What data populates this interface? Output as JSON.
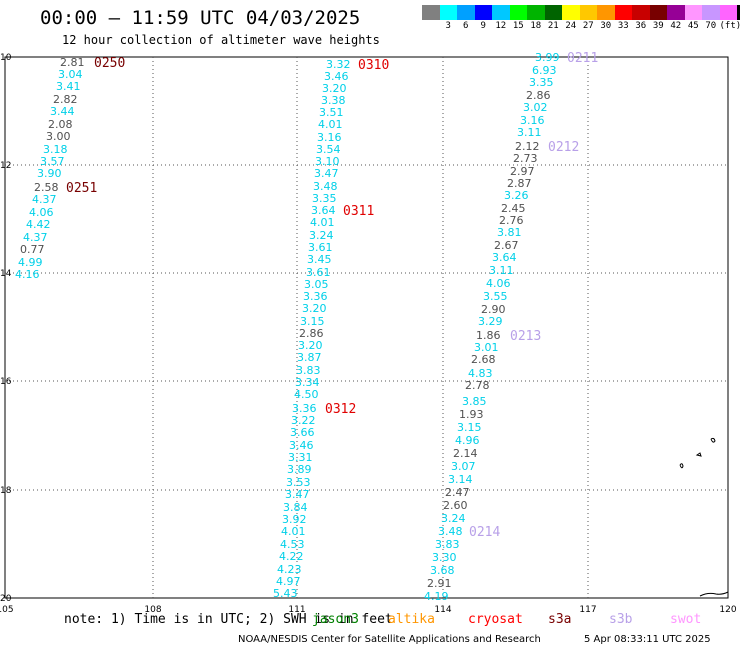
{
  "header": {
    "title": "00:00 – 11:59 UTC 04/03/2025",
    "subtitle": "12 hour collection of altimeter wave heights"
  },
  "colorbar": {
    "colors": [
      "#808080",
      "#00ffff",
      "#00a0ff",
      "#0000ff",
      "#00c8ff",
      "#00ff00",
      "#00b400",
      "#006400",
      "#ffff00",
      "#ffc800",
      "#ff9600",
      "#ff0000",
      "#c80000",
      "#780000",
      "#960096",
      "#ff96ff",
      "#c896ff",
      "#ff64ff",
      "#000000"
    ],
    "labels": [
      "",
      "3",
      "6",
      "9",
      "12",
      "15",
      "18",
      "21",
      "24",
      "27",
      "30",
      "33",
      "36",
      "39",
      "42",
      "45",
      "70",
      "(ft)"
    ]
  },
  "map": {
    "lon_ticks": [
      "105",
      "108",
      "111",
      "114",
      "117",
      "120"
    ],
    "lat_ticks": [
      "10",
      "12",
      "14",
      "16",
      "18",
      "20"
    ],
    "track_colors": {
      "cyan": "#00d0e8",
      "gray": "#505050",
      "lavender": "#b8a0e8",
      "darkred": "#780000",
      "red": "#e00000"
    }
  },
  "tracks": [
    {
      "label": "0250",
      "label_color": "darkred",
      "label_pos": [
        94,
        62
      ],
      "points": [
        {
          "v": "2.81",
          "c": "gray",
          "p": [
            60,
            62
          ]
        },
        {
          "v": "3.04",
          "c": "cyan",
          "p": [
            58,
            74
          ]
        },
        {
          "v": "3.41",
          "c": "cyan",
          "p": [
            56,
            86
          ]
        },
        {
          "v": "2.82",
          "c": "gray",
          "p": [
            53,
            99
          ]
        },
        {
          "v": "3.44",
          "c": "cyan",
          "p": [
            50,
            111
          ]
        },
        {
          "v": "2.08",
          "c": "gray",
          "p": [
            48,
            124
          ]
        },
        {
          "v": "3.00",
          "c": "gray",
          "p": [
            46,
            136
          ]
        },
        {
          "v": "3.18",
          "c": "cyan",
          "p": [
            43,
            149
          ]
        },
        {
          "v": "3.57",
          "c": "cyan",
          "p": [
            40,
            161
          ]
        },
        {
          "v": "3.90",
          "c": "cyan",
          "p": [
            37,
            173
          ]
        }
      ]
    },
    {
      "label": "0251",
      "label_color": "darkred",
      "label_pos": [
        66,
        187
      ],
      "points": [
        {
          "v": "2.58",
          "c": "gray",
          "p": [
            34,
            187
          ]
        },
        {
          "v": "4.37",
          "c": "cyan",
          "p": [
            32,
            199
          ]
        },
        {
          "v": "4.06",
          "c": "cyan",
          "p": [
            29,
            212
          ]
        },
        {
          "v": "4.42",
          "c": "cyan",
          "p": [
            26,
            224
          ]
        },
        {
          "v": "4.37",
          "c": "cyan",
          "p": [
            23,
            237
          ]
        },
        {
          "v": "0.77",
          "c": "gray",
          "p": [
            20,
            249
          ]
        },
        {
          "v": "4.99",
          "c": "cyan",
          "p": [
            18,
            262
          ]
        },
        {
          "v": "4.16",
          "c": "cyan",
          "p": [
            15,
            274
          ]
        }
      ]
    },
    {
      "label": "0310",
      "label_color": "red",
      "label_pos": [
        358,
        64
      ],
      "points": [
        {
          "v": "3.32",
          "c": "cyan",
          "p": [
            326,
            64
          ]
        },
        {
          "v": "3.46",
          "c": "cyan",
          "p": [
            324,
            76
          ]
        },
        {
          "v": "3.20",
          "c": "cyan",
          "p": [
            322,
            88
          ]
        },
        {
          "v": "3.38",
          "c": "cyan",
          "p": [
            321,
            100
          ]
        },
        {
          "v": "3.51",
          "c": "cyan",
          "p": [
            319,
            112
          ]
        },
        {
          "v": "4.01",
          "c": "cyan",
          "p": [
            318,
            124
          ]
        },
        {
          "v": "3.16",
          "c": "cyan",
          "p": [
            317,
            137
          ]
        },
        {
          "v": "3.54",
          "c": "cyan",
          "p": [
            316,
            149
          ]
        },
        {
          "v": "3.10",
          "c": "cyan",
          "p": [
            315,
            161
          ]
        },
        {
          "v": "3.47",
          "c": "cyan",
          "p": [
            314,
            173
          ]
        },
        {
          "v": "3.48",
          "c": "cyan",
          "p": [
            313,
            186
          ]
        },
        {
          "v": "3.35",
          "c": "cyan",
          "p": [
            312,
            198
          ]
        }
      ]
    },
    {
      "label": "0311",
      "label_color": "red",
      "label_pos": [
        343,
        210
      ],
      "points": [
        {
          "v": "3.64",
          "c": "cyan",
          "p": [
            311,
            210
          ]
        },
        {
          "v": "4.01",
          "c": "cyan",
          "p": [
            310,
            222
          ]
        },
        {
          "v": "3.24",
          "c": "cyan",
          "p": [
            309,
            235
          ]
        },
        {
          "v": "3.61",
          "c": "cyan",
          "p": [
            308,
            247
          ]
        },
        {
          "v": "3.45",
          "c": "cyan",
          "p": [
            307,
            259
          ]
        },
        {
          "v": "3.61",
          "c": "cyan",
          "p": [
            306,
            272
          ]
        },
        {
          "v": "3.05",
          "c": "cyan",
          "p": [
            304,
            284
          ]
        },
        {
          "v": "3.36",
          "c": "cyan",
          "p": [
            303,
            296
          ]
        },
        {
          "v": "3.20",
          "c": "cyan",
          "p": [
            302,
            308
          ]
        },
        {
          "v": "3.15",
          "c": "cyan",
          "p": [
            300,
            321
          ]
        },
        {
          "v": "2.86",
          "c": "gray",
          "p": [
            299,
            333
          ]
        },
        {
          "v": "3.20",
          "c": "cyan",
          "p": [
            298,
            345
          ]
        },
        {
          "v": "3.87",
          "c": "cyan",
          "p": [
            297,
            357
          ]
        },
        {
          "v": "3.83",
          "c": "cyan",
          "p": [
            296,
            370
          ]
        },
        {
          "v": "3.34",
          "c": "cyan",
          "p": [
            295,
            382
          ]
        },
        {
          "v": "4.50",
          "c": "cyan",
          "p": [
            294,
            394
          ]
        }
      ]
    },
    {
      "label": "0312",
      "label_color": "red",
      "label_pos": [
        325,
        408
      ],
      "points": [
        {
          "v": "3.36",
          "c": "cyan",
          "p": [
            292,
            408
          ]
        },
        {
          "v": "3.22",
          "c": "cyan",
          "p": [
            291,
            420
          ]
        },
        {
          "v": "3.66",
          "c": "cyan",
          "p": [
            290,
            432
          ]
        },
        {
          "v": "3.46",
          "c": "cyan",
          "p": [
            289,
            445
          ]
        },
        {
          "v": "3.31",
          "c": "cyan",
          "p": [
            288,
            457
          ]
        },
        {
          "v": "3.89",
          "c": "cyan",
          "p": [
            287,
            469
          ]
        },
        {
          "v": "3.53",
          "c": "cyan",
          "p": [
            286,
            482
          ]
        },
        {
          "v": "3.47",
          "c": "cyan",
          "p": [
            285,
            494
          ]
        },
        {
          "v": "3.84",
          "c": "cyan",
          "p": [
            283,
            507
          ]
        },
        {
          "v": "3.92",
          "c": "cyan",
          "p": [
            282,
            519
          ]
        },
        {
          "v": "4.01",
          "c": "cyan",
          "p": [
            281,
            531
          ]
        },
        {
          "v": "4.53",
          "c": "cyan",
          "p": [
            280,
            544
          ]
        },
        {
          "v": "4.22",
          "c": "cyan",
          "p": [
            279,
            556
          ]
        },
        {
          "v": "4.23",
          "c": "cyan",
          "p": [
            277,
            569
          ]
        },
        {
          "v": "4.97",
          "c": "cyan",
          "p": [
            276,
            581
          ]
        },
        {
          "v": "5.43",
          "c": "cyan",
          "p": [
            273,
            593
          ]
        }
      ]
    },
    {
      "label": "0211",
      "label_color": "lavender",
      "label_pos": [
        567,
        57
      ],
      "points": [
        {
          "v": "3.99",
          "c": "cyan",
          "p": [
            535,
            57
          ]
        },
        {
          "v": "6.93",
          "c": "cyan",
          "p": [
            532,
            70
          ]
        },
        {
          "v": "3.35",
          "c": "cyan",
          "p": [
            529,
            82
          ]
        },
        {
          "v": "2.86",
          "c": "gray",
          "p": [
            526,
            95
          ]
        },
        {
          "v": "3.02",
          "c": "cyan",
          "p": [
            523,
            107
          ]
        },
        {
          "v": "3.16",
          "c": "cyan",
          "p": [
            520,
            120
          ]
        },
        {
          "v": "3.11",
          "c": "cyan",
          "p": [
            517,
            132
          ]
        }
      ]
    },
    {
      "label": "0212",
      "label_color": "lavender",
      "label_pos": [
        548,
        146
      ],
      "points": [
        {
          "v": "2.12",
          "c": "gray",
          "p": [
            515,
            146
          ]
        },
        {
          "v": "2.73",
          "c": "gray",
          "p": [
            513,
            158
          ]
        },
        {
          "v": "2.97",
          "c": "gray",
          "p": [
            510,
            171
          ]
        },
        {
          "v": "2.87",
          "c": "gray",
          "p": [
            507,
            183
          ]
        },
        {
          "v": "3.26",
          "c": "cyan",
          "p": [
            504,
            195
          ]
        },
        {
          "v": "2.45",
          "c": "gray",
          "p": [
            501,
            208
          ]
        },
        {
          "v": "2.76",
          "c": "gray",
          "p": [
            499,
            220
          ]
        },
        {
          "v": "3.81",
          "c": "cyan",
          "p": [
            497,
            232
          ]
        },
        {
          "v": "2.67",
          "c": "gray",
          "p": [
            494,
            245
          ]
        },
        {
          "v": "3.64",
          "c": "cyan",
          "p": [
            492,
            257
          ]
        },
        {
          "v": "3.11",
          "c": "cyan",
          "p": [
            489,
            270
          ]
        },
        {
          "v": "4.06",
          "c": "cyan",
          "p": [
            486,
            283
          ]
        },
        {
          "v": "3.55",
          "c": "cyan",
          "p": [
            483,
            296
          ]
        },
        {
          "v": "2.90",
          "c": "gray",
          "p": [
            481,
            309
          ]
        },
        {
          "v": "3.29",
          "c": "cyan",
          "p": [
            478,
            321
          ]
        }
      ]
    },
    {
      "label": "0213",
      "label_color": "lavender",
      "label_pos": [
        510,
        335
      ],
      "points": [
        {
          "v": "1.86",
          "c": "gray",
          "p": [
            476,
            335
          ]
        },
        {
          "v": "3.01",
          "c": "cyan",
          "p": [
            474,
            347
          ]
        },
        {
          "v": "2.68",
          "c": "gray",
          "p": [
            471,
            359
          ]
        },
        {
          "v": "4.83",
          "c": "cyan",
          "p": [
            468,
            373
          ]
        },
        {
          "v": "2.78",
          "c": "gray",
          "p": [
            465,
            385
          ]
        },
        {
          "v": "3.85",
          "c": "cyan",
          "p": [
            462,
            401
          ]
        },
        {
          "v": "1.93",
          "c": "gray",
          "p": [
            459,
            414
          ]
        },
        {
          "v": "3.15",
          "c": "cyan",
          "p": [
            457,
            427
          ]
        },
        {
          "v": "4.96",
          "c": "cyan",
          "p": [
            455,
            440
          ]
        },
        {
          "v": "2.14",
          "c": "gray",
          "p": [
            453,
            453
          ]
        },
        {
          "v": "3.07",
          "c": "cyan",
          "p": [
            451,
            466
          ]
        },
        {
          "v": "3.14",
          "c": "cyan",
          "p": [
            448,
            479
          ]
        },
        {
          "v": "2.47",
          "c": "gray",
          "p": [
            445,
            492
          ]
        },
        {
          "v": "2.60",
          "c": "gray",
          "p": [
            443,
            505
          ]
        },
        {
          "v": "3.24",
          "c": "cyan",
          "p": [
            441,
            518
          ]
        }
      ]
    },
    {
      "label": "0214",
      "label_color": "lavender",
      "label_pos": [
        469,
        531
      ],
      "points": [
        {
          "v": "3.48",
          "c": "cyan",
          "p": [
            438,
            531
          ]
        },
        {
          "v": "3.83",
          "c": "cyan",
          "p": [
            435,
            544
          ]
        },
        {
          "v": "3.30",
          "c": "cyan",
          "p": [
            432,
            557
          ]
        },
        {
          "v": "3.68",
          "c": "cyan",
          "p": [
            430,
            570
          ]
        },
        {
          "v": "2.91",
          "c": "gray",
          "p": [
            427,
            583
          ]
        },
        {
          "v": "4.19",
          "c": "cyan",
          "p": [
            424,
            596
          ]
        }
      ]
    }
  ],
  "footer": {
    "note": "note: 1) Time is in UTC; 2) SWH is in feet",
    "satellites": [
      {
        "name": "jason3",
        "color": "#008000"
      },
      {
        "name": "altika",
        "color": "#ff9600"
      },
      {
        "name": "cryosat",
        "color": "#ff0000"
      },
      {
        "name": "s3a",
        "color": "#780000"
      },
      {
        "name": "s3b",
        "color": "#b8a0e8"
      },
      {
        "name": "swot",
        "color": "#ff96ff"
      }
    ],
    "credit": "NOAA/NESDIS Center for Satellite Applications and Research",
    "generated": "5 Apr 08:33:11 UTC 2025"
  }
}
